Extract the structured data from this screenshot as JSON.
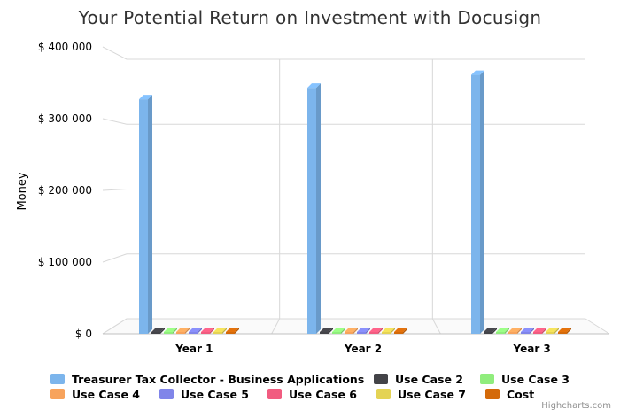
{
  "chart_data": {
    "type": "bar",
    "title": "Your Potential Return on Investment with Docusign",
    "xlabel": "",
    "ylabel": "Money",
    "categories": [
      "Year 1",
      "Year 2",
      "Year 3"
    ],
    "ylim": [
      0,
      400000
    ],
    "yticks": [
      0,
      100000,
      200000,
      300000,
      400000
    ],
    "ytick_labels": [
      "$ 0",
      "$ 100 000",
      "$ 200 000",
      "$ 300 000",
      "$ 400 000"
    ],
    "grid": true,
    "legend_position": "bottom",
    "series": [
      {
        "name": "Treasurer Tax Collector - Business Applications",
        "color": "#7cb5ec",
        "values": [
          327000,
          343000,
          361000
        ]
      },
      {
        "name": "Use Case 2",
        "color": "#434348",
        "values": [
          0,
          0,
          0
        ]
      },
      {
        "name": "Use Case 3",
        "color": "#90ed7d",
        "values": [
          0,
          0,
          0
        ]
      },
      {
        "name": "Use Case 4",
        "color": "#f7a35c",
        "values": [
          0,
          0,
          0
        ]
      },
      {
        "name": "Use Case 5",
        "color": "#8085e9",
        "values": [
          0,
          0,
          0
        ]
      },
      {
        "name": "Use Case 6",
        "color": "#f15c80",
        "values": [
          0,
          0,
          0
        ]
      },
      {
        "name": "Use Case 7",
        "color": "#e4d354",
        "values": [
          0,
          0,
          0
        ]
      },
      {
        "name": "Cost",
        "color": "#d46a0a",
        "values": [
          0,
          0,
          0
        ]
      }
    ]
  },
  "credits": "Highcharts.com"
}
